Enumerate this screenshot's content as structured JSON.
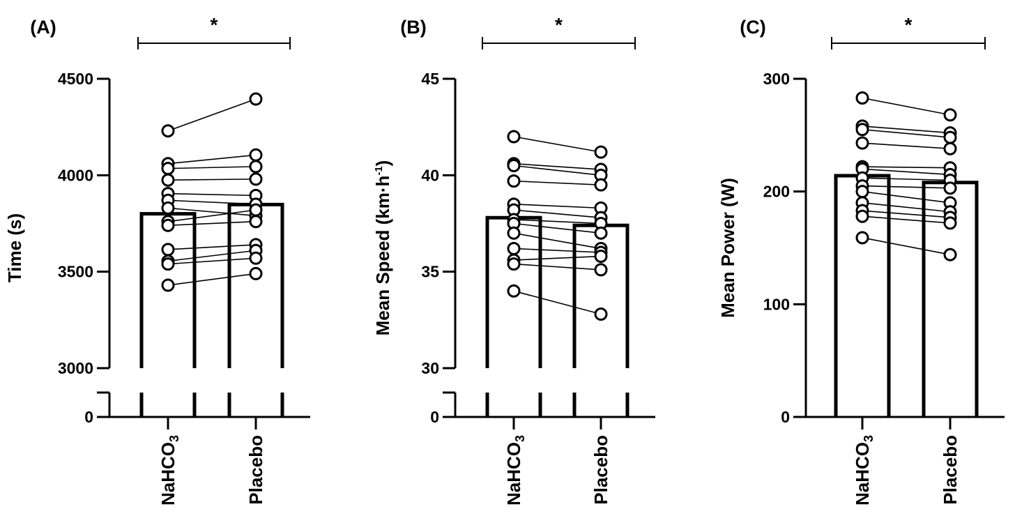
{
  "chart_data": [
    {
      "panel": "(A)",
      "type": "bar",
      "significance": "*",
      "ylabel": "Time (s)",
      "categories": [
        "NaHCO3",
        "Placebo"
      ],
      "category_labels": [
        {
          "main": "NaHCO",
          "sub": "3"
        },
        {
          "main": "Placebo",
          "sub": ""
        }
      ],
      "broken_axis": true,
      "ylim": [
        0,
        4500
      ],
      "upper_range": [
        3000,
        4500
      ],
      "yticks": [
        0,
        3000,
        3500,
        4000,
        4500
      ],
      "bar_means": [
        3800,
        3848
      ],
      "paired_values": [
        [
          4230,
          4395
        ],
        [
          4060,
          4105
        ],
        [
          4035,
          4045
        ],
        [
          3975,
          3980
        ],
        [
          3905,
          3895
        ],
        [
          3870,
          3850
        ],
        [
          3830,
          3790
        ],
        [
          3760,
          3820
        ],
        [
          3740,
          3760
        ],
        [
          3615,
          3640
        ],
        [
          3555,
          3610
        ],
        [
          3540,
          3570
        ],
        [
          3430,
          3490
        ]
      ]
    },
    {
      "panel": "(B)",
      "type": "bar",
      "significance": "*",
      "ylabel": {
        "main": "Mean Speed (km·h",
        "sup": "-1",
        "end": ")"
      },
      "categories": [
        "NaHCO3",
        "Placebo"
      ],
      "category_labels": [
        {
          "main": "NaHCO",
          "sub": "3"
        },
        {
          "main": "Placebo",
          "sub": ""
        }
      ],
      "broken_axis": true,
      "ylim": [
        0,
        45
      ],
      "upper_range": [
        30,
        45
      ],
      "yticks": [
        0,
        30,
        35,
        40,
        45
      ],
      "bar_means": [
        37.8,
        37.4
      ],
      "paired_values": [
        [
          42.0,
          41.2
        ],
        [
          40.6,
          40.3
        ],
        [
          40.5,
          40.0
        ],
        [
          39.7,
          39.5
        ],
        [
          38.5,
          38.3
        ],
        [
          38.2,
          37.8
        ],
        [
          37.7,
          37.5
        ],
        [
          37.5,
          37.0
        ],
        [
          37.0,
          36.2
        ],
        [
          36.2,
          36.0
        ],
        [
          35.6,
          35.8
        ],
        [
          35.4,
          35.1
        ],
        [
          34.0,
          32.8
        ]
      ]
    },
    {
      "panel": "(C)",
      "type": "bar",
      "significance": "*",
      "ylabel": "Mean Power (W)",
      "categories": [
        "NaHCO3",
        "Placebo"
      ],
      "category_labels": [
        {
          "main": "NaHCO",
          "sub": "3"
        },
        {
          "main": "Placebo",
          "sub": ""
        }
      ],
      "broken_axis": false,
      "ylim": [
        0,
        300
      ],
      "yticks": [
        0,
        100,
        200,
        300
      ],
      "bar_means": [
        214,
        208
      ],
      "paired_values": [
        [
          283,
          268
        ],
        [
          258,
          252
        ],
        [
          255,
          248
        ],
        [
          243,
          238
        ],
        [
          222,
          221
        ],
        [
          220,
          215
        ],
        [
          212,
          210
        ],
        [
          205,
          203
        ],
        [
          200,
          190
        ],
        [
          190,
          182
        ],
        [
          183,
          177
        ],
        [
          178,
          172
        ],
        [
          159,
          144
        ]
      ]
    }
  ]
}
